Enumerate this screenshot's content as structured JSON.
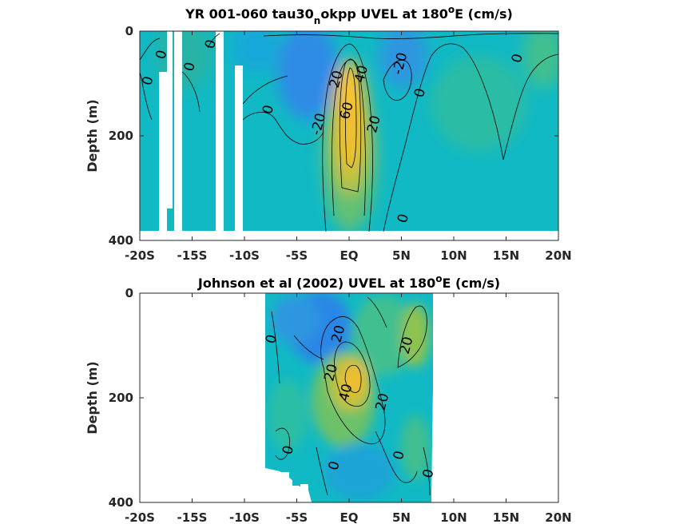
{
  "chart_data": [
    {
      "type": "heatmap",
      "title_main": "YR 001-060 tau30",
      "title_sub": "n",
      "title_rest": "okpp UVEL at 180",
      "title_sup": "o",
      "title_end": "E (cm/s)",
      "ylabel": "Depth (m)",
      "xlabel": "",
      "xlim": [
        -20,
        20
      ],
      "ylim": [
        0,
        400
      ],
      "y_reversed": true,
      "x_ticks": [
        -20,
        -15,
        -10,
        -5,
        0,
        5,
        10,
        15,
        20
      ],
      "x_tick_labels": [
        "-20S",
        "-15S",
        "-10S",
        "-5S",
        "EQ",
        "5N",
        "10N",
        "15N",
        "20N"
      ],
      "y_ticks": [
        0,
        200,
        400
      ],
      "y_tick_labels": [
        "0",
        "200",
        "400"
      ],
      "contour_levels": [
        -20,
        0,
        20,
        40,
        60
      ],
      "contour_labels": [
        {
          "text": "0",
          "x": -17.9,
          "y": 45
        },
        {
          "text": "0",
          "x": -19.2,
          "y": 95
        },
        {
          "text": "0",
          "x": -15.2,
          "y": 68
        },
        {
          "text": "0",
          "x": -13.2,
          "y": 25
        },
        {
          "text": "0",
          "x": -7.7,
          "y": 150
        },
        {
          "text": "-20",
          "x": -2.9,
          "y": 178
        },
        {
          "text": "20",
          "x": -1.2,
          "y": 92
        },
        {
          "text": "40",
          "x": 1.2,
          "y": 82
        },
        {
          "text": "60",
          "x": -0.2,
          "y": 152
        },
        {
          "text": "20",
          "x": 2.4,
          "y": 178
        },
        {
          "text": "-20",
          "x": 4.9,
          "y": 62
        },
        {
          "text": "0",
          "x": 6.8,
          "y": 118
        },
        {
          "text": "0",
          "x": 5.2,
          "y": 358
        },
        {
          "text": "0",
          "x": 16.1,
          "y": 52
        }
      ],
      "field_description_points": [
        {
          "x": -15,
          "y": 60,
          "value": -2
        },
        {
          "x": -5,
          "y": 60,
          "value": -28
        },
        {
          "x": 0,
          "y": 150,
          "value": 72
        },
        {
          "x": 0,
          "y": 300,
          "value": 25
        },
        {
          "x": 5,
          "y": 50,
          "value": -18
        },
        {
          "x": 10,
          "y": 120,
          "value": 8
        },
        {
          "x": 15,
          "y": 200,
          "value": 2
        }
      ],
      "missing_data_note_values": "white gaps near -18S to -10S and below ~385 m"
    },
    {
      "type": "heatmap",
      "title_main": "Johnson et al (2002) UVEL at 180",
      "title_sup": "o",
      "title_end": "E (cm/s)",
      "ylabel": "Depth (m)",
      "xlabel": "",
      "xlim": [
        -20,
        20
      ],
      "ylim": [
        0,
        400
      ],
      "y_reversed": true,
      "data_x_range": [
        -8,
        8
      ],
      "x_ticks": [
        -20,
        -15,
        -10,
        -5,
        0,
        5,
        10,
        15,
        20
      ],
      "x_tick_labels": [
        "-20S",
        "-15S",
        "-10S",
        "-5S",
        "EQ",
        "5N",
        "10N",
        "15N",
        "20N"
      ],
      "y_ticks": [
        0,
        200,
        400
      ],
      "y_tick_labels": [
        "0",
        "200",
        "400"
      ],
      "contour_levels": [
        -20,
        0,
        20,
        40
      ],
      "contour_labels": [
        {
          "text": "0",
          "x": -7.4,
          "y": 88
        },
        {
          "text": "20",
          "x": -1.0,
          "y": 78
        },
        {
          "text": "20",
          "x": -1.7,
          "y": 152
        },
        {
          "text": "40",
          "x": -0.3,
          "y": 190
        },
        {
          "text": "20",
          "x": 3.2,
          "y": 208
        },
        {
          "text": "20",
          "x": 5.5,
          "y": 100
        },
        {
          "text": "0",
          "x": -5.8,
          "y": 300
        },
        {
          "text": "0",
          "x": -1.4,
          "y": 330
        },
        {
          "text": "0",
          "x": 4.8,
          "y": 310
        },
        {
          "text": "0",
          "x": 7.6,
          "y": 345
        }
      ],
      "field_description_points": [
        {
          "x": -3,
          "y": 40,
          "value": -30
        },
        {
          "x": 1,
          "y": 170,
          "value": 45
        },
        {
          "x": 5,
          "y": 80,
          "value": 20
        },
        {
          "x": 3,
          "y": 350,
          "value": -12
        },
        {
          "x": -7,
          "y": 250,
          "value": 2
        }
      ]
    }
  ],
  "colors": {
    "neg_strong": "#3487e8",
    "neg": "#1ba3d9",
    "zero": "#0fbbc2",
    "pos_low": "#36bd9a",
    "pos_mid": "#9ec24a",
    "pos_high": "#f2bd30",
    "pos_max": "#fdc133"
  }
}
